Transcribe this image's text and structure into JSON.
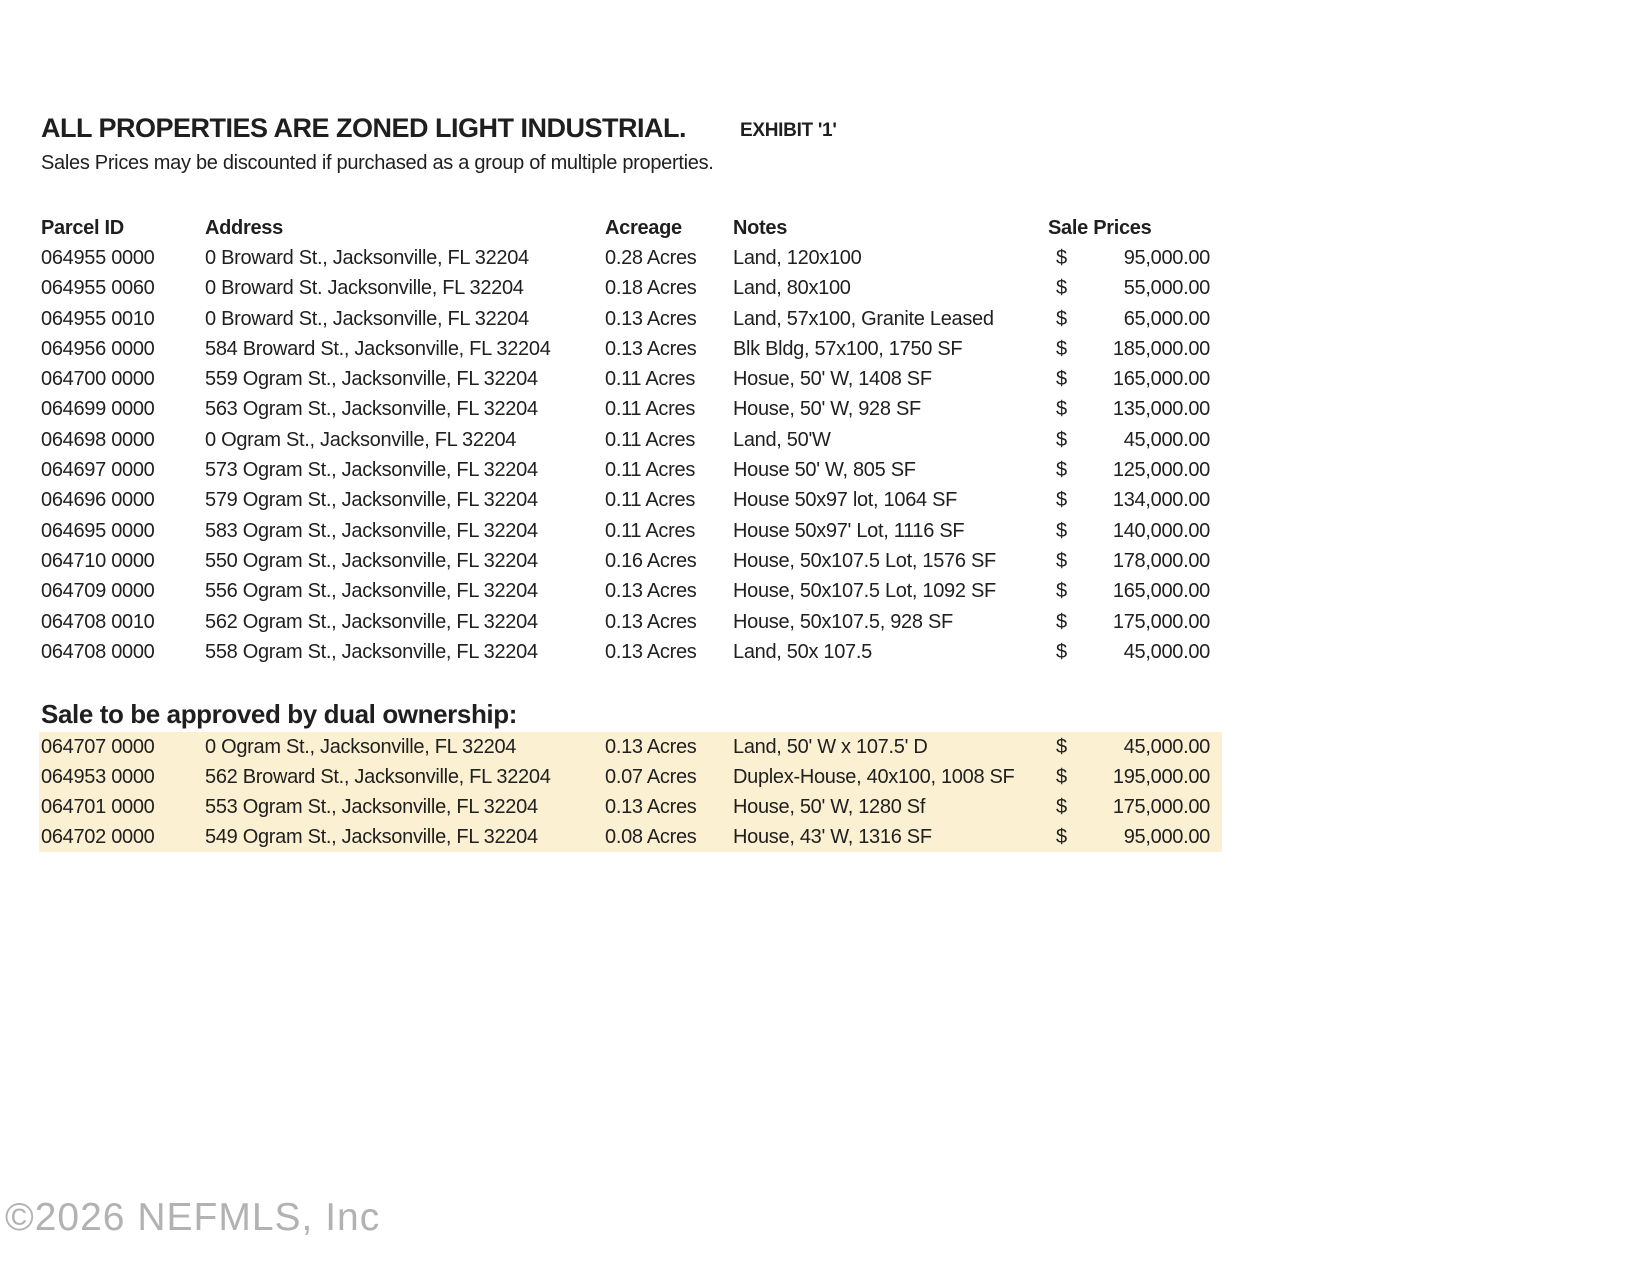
{
  "document": {
    "title": "ALL PROPERTIES ARE ZONED LIGHT INDUSTRIAL.",
    "exhibit_label": "EXHIBIT '1'",
    "subtitle": "Sales Prices may be discounted if purchased as a group of multiple properties.",
    "watermark": "©2026 NEFMLS, Inc"
  },
  "colors": {
    "background": "#ffffff",
    "text": "#1f1f1f",
    "highlight": "#FBF0D2",
    "watermark": "#b2b2b2"
  },
  "table": {
    "currency_symbol": "$",
    "headers": {
      "parcel_id": "Parcel ID",
      "address": "Address",
      "acreage": "Acreage",
      "notes": "Notes",
      "sale_prices": "Sale Prices"
    },
    "rows": [
      {
        "parcel": "064955 0000",
        "address": "0 Broward St., Jacksonville, FL 32204",
        "acreage": "0.28 Acres",
        "notes": "Land, 120x100",
        "price": "95,000.00"
      },
      {
        "parcel": "064955 0060",
        "address": "0 Broward St. Jacksonville, FL 32204",
        "acreage": "0.18 Acres",
        "notes": "Land, 80x100",
        "price": "55,000.00"
      },
      {
        "parcel": "064955 0010",
        "address": "0 Broward St., Jacksonville, FL 32204",
        "acreage": "0.13 Acres",
        "notes": "Land, 57x100, Granite Leased",
        "price": "65,000.00"
      },
      {
        "parcel": "064956 0000",
        "address": "584 Broward St., Jacksonville, FL 32204",
        "acreage": "0.13 Acres",
        "notes": "Blk Bldg, 57x100, 1750 SF",
        "price": "185,000.00"
      },
      {
        "parcel": "064700 0000",
        "address": "559 Ogram St., Jacksonville, FL 32204",
        "acreage": "0.11 Acres",
        "notes": "Hosue, 50' W, 1408 SF",
        "price": "165,000.00"
      },
      {
        "parcel": "064699 0000",
        "address": "563 Ogram St., Jacksonville, FL 32204",
        "acreage": "0.11 Acres",
        "notes": "House, 50' W, 928 SF",
        "price": "135,000.00"
      },
      {
        "parcel": "064698 0000",
        "address": "0 Ogram St., Jacksonville, FL 32204",
        "acreage": "0.11 Acres",
        "notes": "Land, 50'W",
        "price": "45,000.00"
      },
      {
        "parcel": "064697 0000",
        "address": "573 Ogram St., Jacksonville, FL 32204",
        "acreage": "0.11 Acres",
        "notes": "House 50' W, 805 SF",
        "price": "125,000.00"
      },
      {
        "parcel": "064696 0000",
        "address": "579 Ogram St., Jacksonville, FL 32204",
        "acreage": "0.11 Acres",
        "notes": "House 50x97 lot, 1064 SF",
        "price": "134,000.00"
      },
      {
        "parcel": "064695 0000",
        "address": "583 Ogram St., Jacksonville, FL 32204",
        "acreage": "0.11 Acres",
        "notes": "House 50x97' Lot, 1116 SF",
        "price": "140,000.00"
      },
      {
        "parcel": "064710 0000",
        "address": "550 Ogram St., Jacksonville, FL 32204",
        "acreage": "0.16 Acres",
        "notes": "House, 50x107.5 Lot, 1576 SF",
        "price": "178,000.00"
      },
      {
        "parcel": "064709 0000",
        "address": "556 Ogram St., Jacksonville, FL 32204",
        "acreage": "0.13 Acres",
        "notes": "House, 50x107.5 Lot, 1092 SF",
        "price": "165,000.00"
      },
      {
        "parcel": "064708 0010",
        "address": "562 Ogram St., Jacksonville, FL 32204",
        "acreage": "0.13 Acres",
        "notes": "House, 50x107.5, 928 SF",
        "price": "175,000.00"
      },
      {
        "parcel": "064708 0000",
        "address": "558 Ogram St., Jacksonville, FL 32204",
        "acreage": "0.13 Acres",
        "notes": "Land, 50x 107.5",
        "price": "45,000.00"
      }
    ]
  },
  "dual_ownership": {
    "heading": "Sale to be approved by dual ownership:",
    "rows": [
      {
        "parcel": "064707 0000",
        "address": "0 Ogram St., Jacksonville, FL 32204",
        "acreage": "0.13 Acres",
        "notes": "Land, 50' W x 107.5' D",
        "price": "45,000.00"
      },
      {
        "parcel": "064953 0000",
        "address": "562 Broward St., Jacksonville, FL 32204",
        "acreage": "0.07 Acres",
        "notes": "Duplex-House, 40x100, 1008 SF",
        "price": "195,000.00"
      },
      {
        "parcel": "064701 0000",
        "address": "553 Ogram St., Jacksonville, FL 32204",
        "acreage": "0.13 Acres",
        "notes": "House, 50' W, 1280 Sf",
        "price": "175,000.00"
      },
      {
        "parcel": "064702 0000",
        "address": "549 Ogram St., Jacksonville, FL 32204",
        "acreage": "0.08 Acres",
        "notes": "House, 43' W, 1316 SF",
        "price": "95,000.00"
      }
    ]
  }
}
